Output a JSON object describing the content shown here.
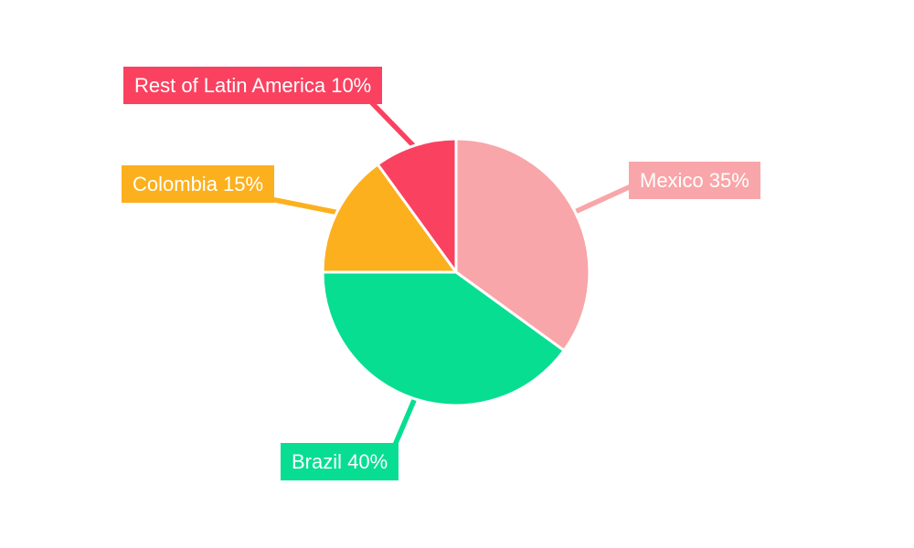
{
  "chart_data": {
    "type": "pie",
    "title": "",
    "unit": "%",
    "background_color": "#FFFFFF",
    "label_text_color": "#FFFFFF",
    "start_angle_deg": 0,
    "direction": "clockwise",
    "slices": [
      {
        "name": "Mexico",
        "value": 35,
        "label": "Mexico 35%",
        "color": "#F8A6A9"
      },
      {
        "name": "Brazil",
        "value": 40,
        "label": "Brazil 40%",
        "color": "#07DE92"
      },
      {
        "name": "Colombia",
        "value": 15,
        "label": "Colombia 15%",
        "color": "#FCB01E"
      },
      {
        "name": "Rest of Latin America",
        "value": 10,
        "label": "Rest of Latin America 10%",
        "color": "#FA4160"
      }
    ]
  }
}
